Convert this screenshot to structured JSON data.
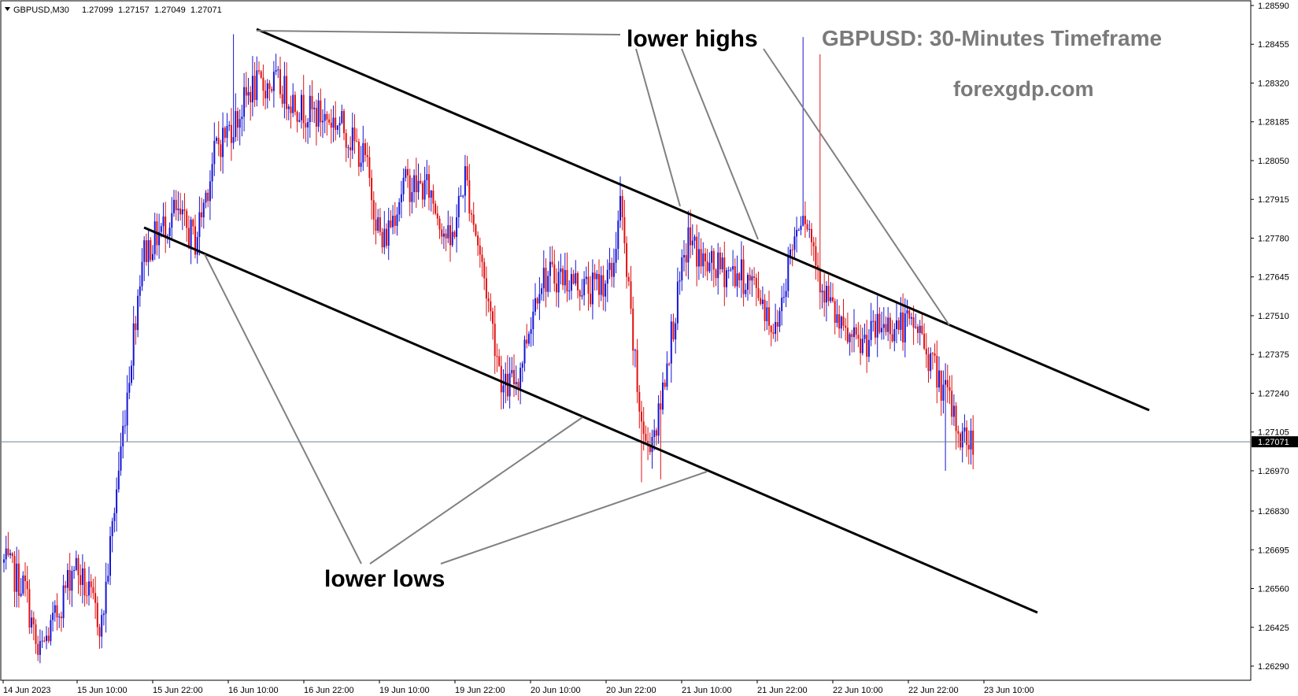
{
  "chart_header": {
    "symbol": "GBPUSD,M30",
    "open": "1.27099",
    "high": "1.27157",
    "low": "1.27049",
    "close": "1.27071"
  },
  "annotations": {
    "title": "GBPUSD: 30-Minutes Timeframe",
    "source": "forexgdp.com",
    "lower_highs": "lower highs",
    "lower_lows": "lower lows"
  },
  "chart_data": {
    "type": "candlestick",
    "symbol": "GBPUSD",
    "timeframe": "M30",
    "price_ylim": [
      1.2622,
      1.2859
    ],
    "y_ticks": [
      "1.28590",
      "1.28455",
      "1.28320",
      "1.28185",
      "1.28050",
      "1.27915",
      "1.27780",
      "1.27645",
      "1.27510",
      "1.27375",
      "1.27240",
      "1.27105",
      "1.26970",
      "1.26830",
      "1.26695",
      "1.26560",
      "1.26425",
      "1.26290"
    ],
    "x_ticks": [
      "14 Jun 2023",
      "15 Jun 10:00",
      "15 Jun 22:00",
      "16 Jun 10:00",
      "16 Jun 22:00",
      "19 Jun 10:00",
      "19 Jun 22:00",
      "20 Jun 10:00",
      "20 Jun 22:00",
      "21 Jun 10:00",
      "21 Jun 22:00",
      "22 Jun 10:00",
      "22 Jun 22:00",
      "23 Jun 10:00"
    ],
    "current_price": "1.27071",
    "bull_color": "#1515d6",
    "bear_color": "#e01010",
    "price_path": [
      {
        "bar": 0,
        "price": 1.2665
      },
      {
        "bar": 10,
        "price": 1.2656
      },
      {
        "bar": 16,
        "price": 1.2632
      },
      {
        "bar": 24,
        "price": 1.2645
      },
      {
        "bar": 33,
        "price": 1.2665
      },
      {
        "bar": 46,
        "price": 1.2643
      },
      {
        "bar": 52,
        "price": 1.2684
      },
      {
        "bar": 58,
        "price": 1.2725
      },
      {
        "bar": 65,
        "price": 1.2772
      },
      {
        "bar": 80,
        "price": 1.2787
      },
      {
        "bar": 90,
        "price": 1.2777
      },
      {
        "bar": 100,
        "price": 1.281
      },
      {
        "bar": 110,
        "price": 1.282
      },
      {
        "bar": 116,
        "price": 1.283
      },
      {
        "bar": 128,
        "price": 1.2832
      },
      {
        "bar": 140,
        "price": 1.2823
      },
      {
        "bar": 158,
        "price": 1.2818
      },
      {
        "bar": 170,
        "price": 1.2805
      },
      {
        "bar": 178,
        "price": 1.2775
      },
      {
        "bar": 188,
        "price": 1.2797
      },
      {
        "bar": 200,
        "price": 1.2795
      },
      {
        "bar": 210,
        "price": 1.2775
      },
      {
        "bar": 217,
        "price": 1.28
      },
      {
        "bar": 227,
        "price": 1.276
      },
      {
        "bar": 235,
        "price": 1.2725
      },
      {
        "bar": 242,
        "price": 1.273
      },
      {
        "bar": 252,
        "price": 1.2764
      },
      {
        "bar": 262,
        "price": 1.2765
      },
      {
        "bar": 276,
        "price": 1.276
      },
      {
        "bar": 286,
        "price": 1.2765
      },
      {
        "bar": 290,
        "price": 1.279
      },
      {
        "bar": 298,
        "price": 1.2725
      },
      {
        "bar": 302,
        "price": 1.2705
      },
      {
        "bar": 308,
        "price": 1.2715
      },
      {
        "bar": 312,
        "price": 1.2736
      },
      {
        "bar": 322,
        "price": 1.2778
      },
      {
        "bar": 330,
        "price": 1.2768
      },
      {
        "bar": 345,
        "price": 1.2766
      },
      {
        "bar": 355,
        "price": 1.276
      },
      {
        "bar": 363,
        "price": 1.2745
      },
      {
        "bar": 370,
        "price": 1.2773
      },
      {
        "bar": 376,
        "price": 1.279
      },
      {
        "bar": 385,
        "price": 1.2762
      },
      {
        "bar": 394,
        "price": 1.2745
      },
      {
        "bar": 402,
        "price": 1.274
      },
      {
        "bar": 414,
        "price": 1.2748
      },
      {
        "bar": 430,
        "price": 1.2747
      },
      {
        "bar": 438,
        "price": 1.2732
      },
      {
        "bar": 444,
        "price": 1.2722
      },
      {
        "bar": 450,
        "price": 1.2709
      },
      {
        "bar": 456,
        "price": 1.2707
      }
    ],
    "trendlines": [
      {
        "name": "upper channel (lower highs)",
        "from": {
          "bar": 108,
          "price": 1.285
        },
        "to": {
          "bar": 485,
          "price": 1.2724
        }
      },
      {
        "name": "lower channel (lower lows)",
        "from": {
          "bar": 60,
          "price": 1.2782
        },
        "to": {
          "bar": 438,
          "price": 1.2648
        }
      }
    ]
  }
}
